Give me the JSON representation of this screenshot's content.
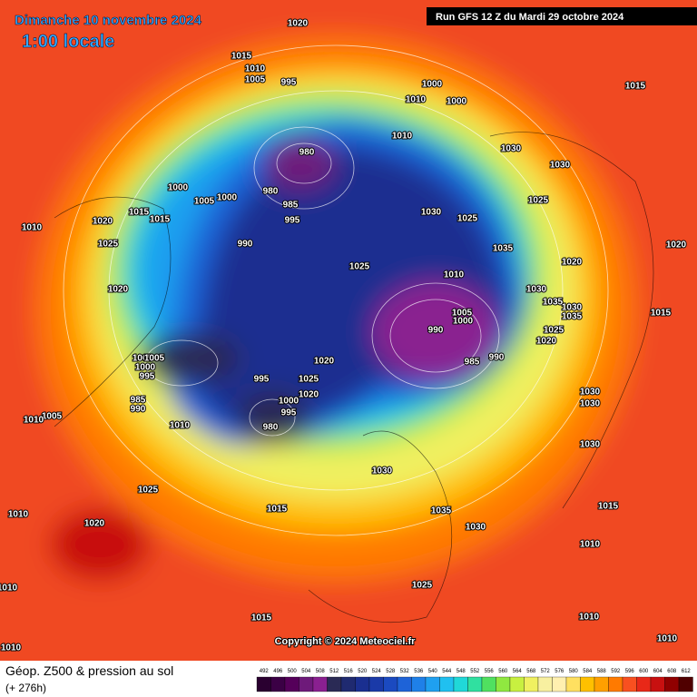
{
  "header": {
    "date": "Dimanche 10 novembre 2024",
    "time": "1:00 locale",
    "run": "Run GFS 12 Z du Mardi 29 octobre 2024"
  },
  "footer": {
    "title": "Géop. Z500 & pression au sol",
    "lead": "(+ 276h)",
    "copyright": "Copyright © 2024 Meteociel.fr"
  },
  "scale": {
    "values": [
      492,
      496,
      500,
      504,
      508,
      512,
      516,
      520,
      524,
      528,
      532,
      536,
      540,
      544,
      548,
      552,
      556,
      560,
      564,
      568,
      572,
      576,
      580,
      584,
      588,
      592,
      596,
      600,
      604,
      608,
      612
    ],
    "colors": [
      "#2a0030",
      "#3b0045",
      "#55005a",
      "#6e1a7a",
      "#8a2090",
      "#2a2a55",
      "#1f2a70",
      "#1a2f90",
      "#1a3aa8",
      "#1b4ac0",
      "#1e63d8",
      "#1f80e8",
      "#1fa0f0",
      "#20c0f0",
      "#20d8d8",
      "#30e0a0",
      "#50e060",
      "#90e840",
      "#c8f040",
      "#f0f060",
      "#f8f0a0",
      "#fff0b0",
      "#ffe060",
      "#ffc000",
      "#ffa000",
      "#ff7a00",
      "#f85020",
      "#e82818",
      "#c81010",
      "#900000",
      "#500000"
    ]
  },
  "isobars": [
    1020,
    1015,
    1010,
    1005,
    995,
    1000,
    1010,
    1000,
    1015,
    1010,
    980,
    1030,
    1030,
    1000,
    1005,
    1000,
    980,
    985,
    995,
    1015,
    1015,
    1020,
    1010,
    1025,
    990,
    1030,
    1025,
    1025,
    1035,
    1020,
    1020,
    1025,
    1010,
    1030,
    1035,
    1030,
    1035,
    1005,
    1000,
    990,
    985,
    990,
    1025,
    1020,
    1015,
    1020,
    1005,
    1000,
    995,
    1020,
    995,
    1025,
    1020,
    1000,
    995,
    985,
    990,
    1005,
    1005,
    1010,
    980,
    1010,
    1030,
    1030,
    1030,
    1030,
    1025,
    1035,
    1030,
    1015,
    1015,
    1010,
    1020,
    1025,
    1010,
    1015,
    1010,
    1010,
    1010,
    1010
  ]
}
